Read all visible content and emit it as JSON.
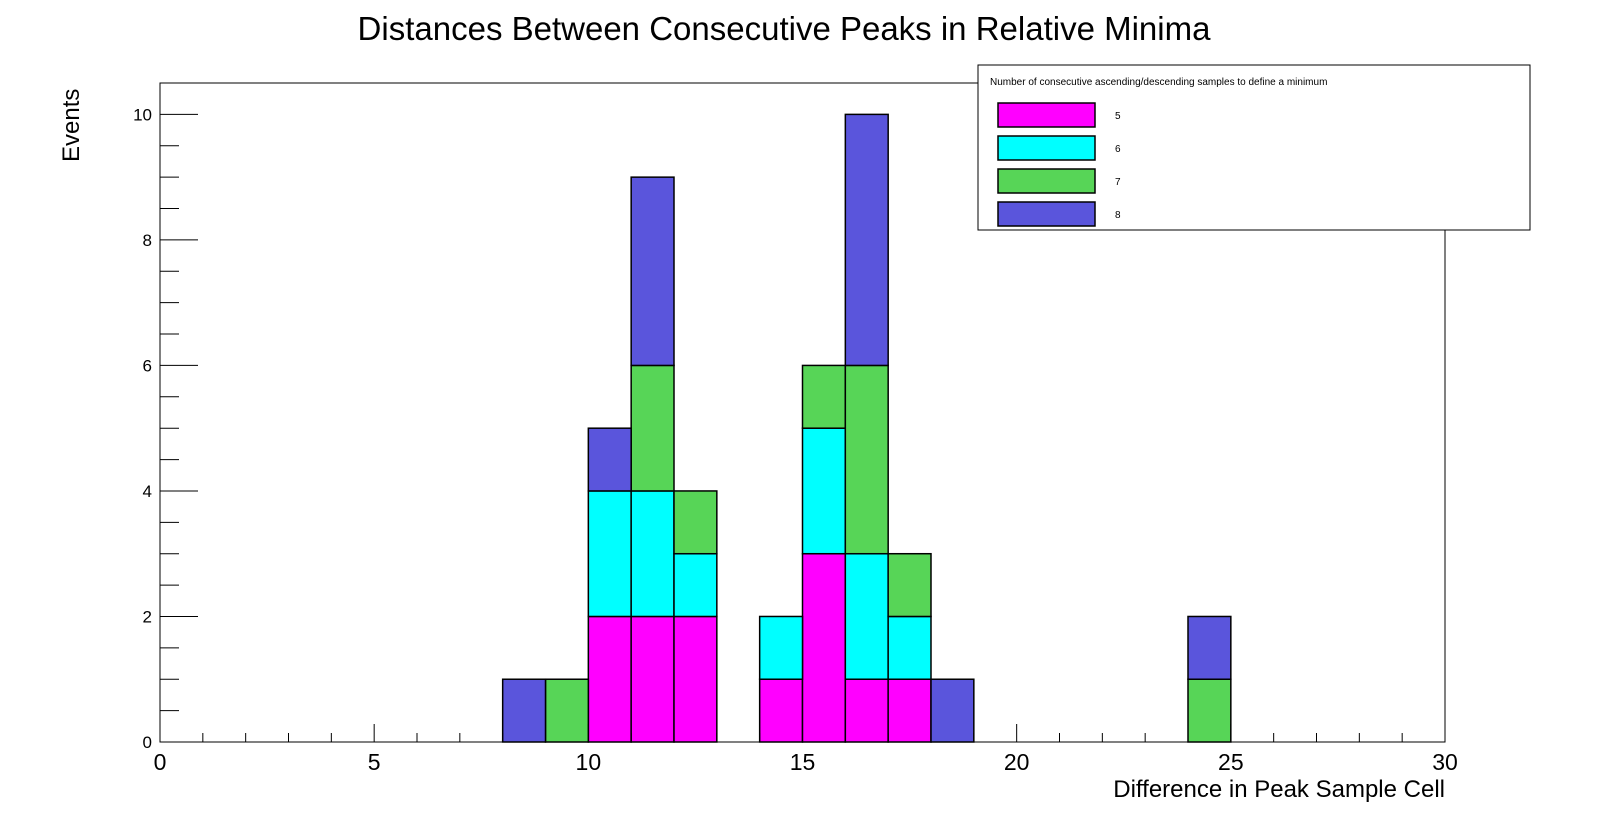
{
  "chart_data": {
    "type": "bar",
    "stacked": true,
    "title": "Distances Between Consecutive Peaks in Relative Minima",
    "xlabel": "Difference in Peak Sample Cell",
    "ylabel": "Events",
    "xlim": [
      0,
      30
    ],
    "ylim": [
      0,
      10.5
    ],
    "x_ticks": [
      "0",
      "5",
      "10",
      "15",
      "20",
      "25",
      "30"
    ],
    "y_ticks": [
      "0",
      "2",
      "4",
      "6",
      "8",
      "10"
    ],
    "bin_edges": [
      8,
      9,
      10,
      11,
      12,
      13,
      14,
      15,
      16,
      17,
      18,
      19,
      24,
      25
    ],
    "legend": {
      "title": "Number of consecutive ascending/descending samples to define a minimum",
      "position": "top-right"
    },
    "series": [
      {
        "name": "5",
        "color": "#ff00ff",
        "bins": [
          [
            10,
            2
          ],
          [
            11,
            2
          ],
          [
            12,
            2
          ],
          [
            14,
            1
          ],
          [
            15,
            3
          ],
          [
            16,
            1
          ],
          [
            17,
            1
          ]
        ]
      },
      {
        "name": "6",
        "color": "#00ffff",
        "bins": [
          [
            10,
            2
          ],
          [
            11,
            2
          ],
          [
            12,
            1
          ],
          [
            14,
            1
          ],
          [
            15,
            2
          ],
          [
            16,
            2
          ],
          [
            17,
            1
          ]
        ]
      },
      {
        "name": "7",
        "color": "#57d557",
        "bins": [
          [
            9,
            1
          ],
          [
            11,
            2
          ],
          [
            12,
            1
          ],
          [
            15,
            1
          ],
          [
            16,
            3
          ],
          [
            17,
            1
          ],
          [
            24,
            1
          ]
        ]
      },
      {
        "name": "8",
        "color": "#5a55dc",
        "bins": [
          [
            8,
            1
          ],
          [
            10,
            1
          ],
          [
            11,
            3
          ],
          [
            16,
            4
          ],
          [
            18,
            1
          ],
          [
            24,
            1
          ]
        ]
      }
    ]
  }
}
